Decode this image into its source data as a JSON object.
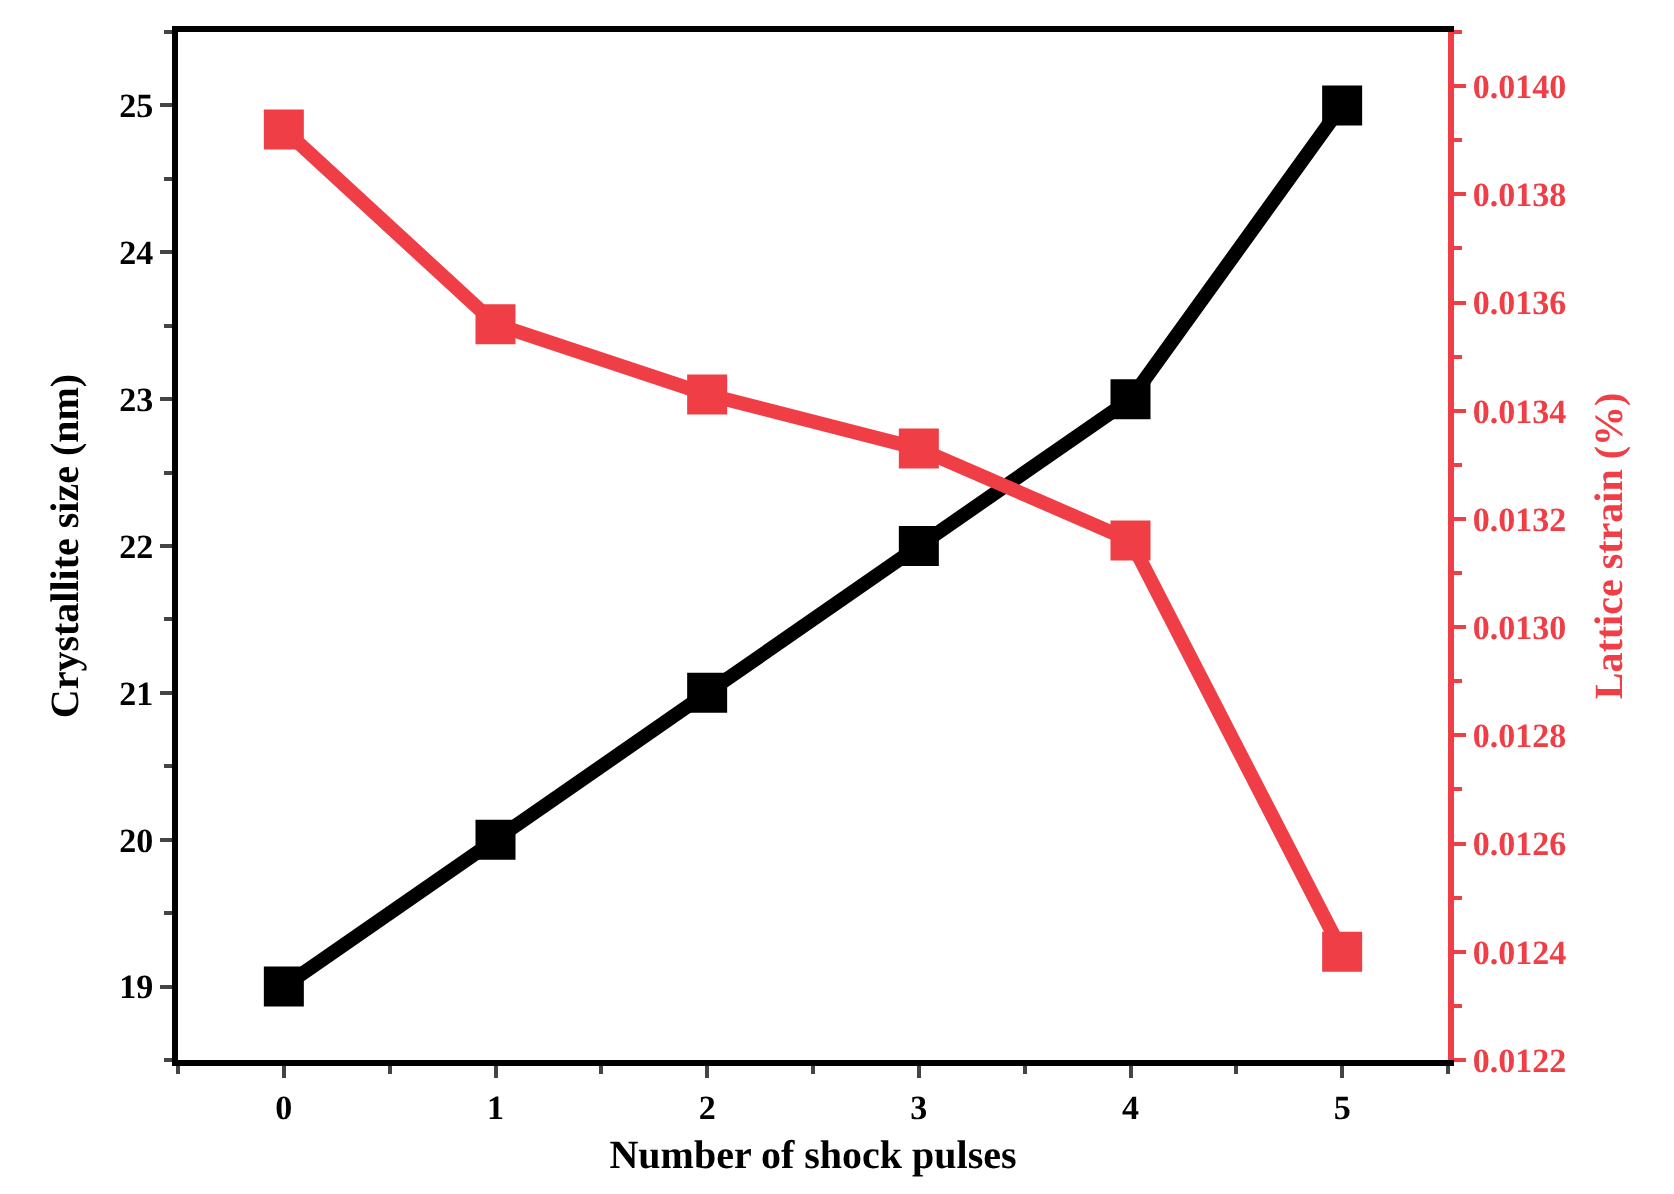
{
  "chart_data": {
    "type": "line",
    "xlabel": "Number of shock pulses",
    "ylabel": "Crystallite size (nm)",
    "y2label": "Lattice strain (%)",
    "x": [
      0,
      1,
      2,
      3,
      4,
      5
    ],
    "series": [
      {
        "color": "#000000",
        "values": [
          19,
          20,
          21,
          22,
          23,
          25
        ]
      },
      {
        "color": "#ef3e45",
        "axis": "y2",
        "values": [
          0.01392,
          0.01356,
          0.01343,
          0.01333,
          0.01316,
          0.0124
        ]
      }
    ],
    "xlim": [
      -0.5,
      5.5
    ],
    "xticks": [
      0,
      1,
      2,
      3,
      4,
      5
    ],
    "ylim": [
      18.5,
      25.5
    ],
    "yticks": [
      19,
      20,
      21,
      22,
      23,
      24,
      25
    ],
    "y2lim": [
      0.0122,
      0.0141
    ],
    "y2ticks": [
      {
        "value": 0.0122,
        "label": "0.0122"
      },
      {
        "value": 0.0124,
        "label": "0.0124"
      },
      {
        "value": 0.0126,
        "label": "0.0126"
      },
      {
        "value": 0.0128,
        "label": "0.0128"
      },
      {
        "value": 0.013,
        "label": "0.0130"
      },
      {
        "value": 0.0132,
        "label": "0.0132"
      },
      {
        "value": 0.0134,
        "label": "0.0134"
      },
      {
        "value": 0.0136,
        "label": "0.0136"
      },
      {
        "value": 0.0138,
        "label": "0.0138"
      },
      {
        "value": 0.014,
        "label": "0.0140"
      }
    ],
    "marker": "square",
    "line_style": "solid"
  }
}
